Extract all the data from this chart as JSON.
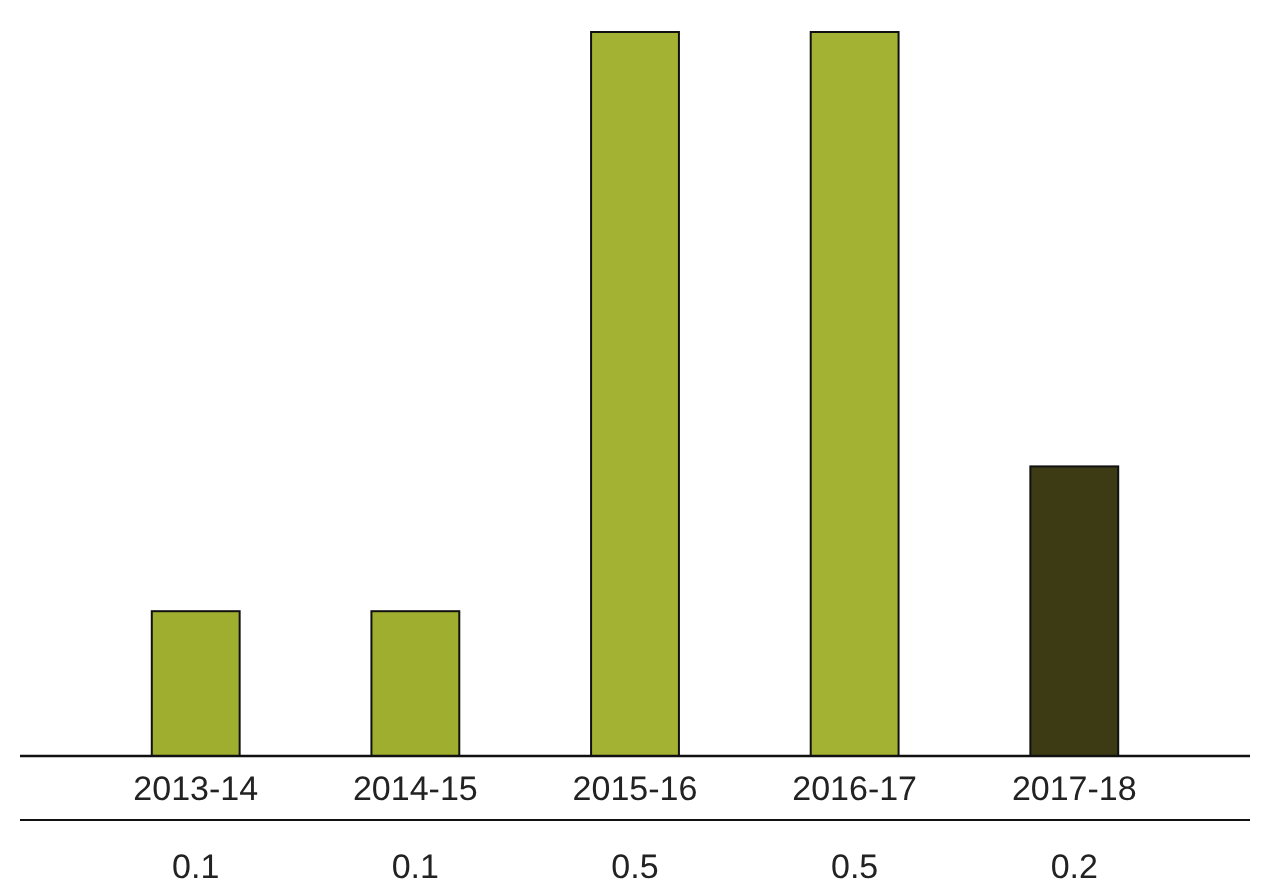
{
  "chart_data": {
    "type": "bar",
    "categories": [
      "2013-14",
      "2014-15",
      "2015-16",
      "2016-17",
      "2017-18"
    ],
    "values": [
      0.1,
      0.1,
      0.5,
      0.5,
      0.2
    ],
    "colors": [
      "#9fae2f",
      "#9fae2f",
      "#a3b232",
      "#a3b232",
      "#3d3b14"
    ],
    "data_labels": true
  }
}
